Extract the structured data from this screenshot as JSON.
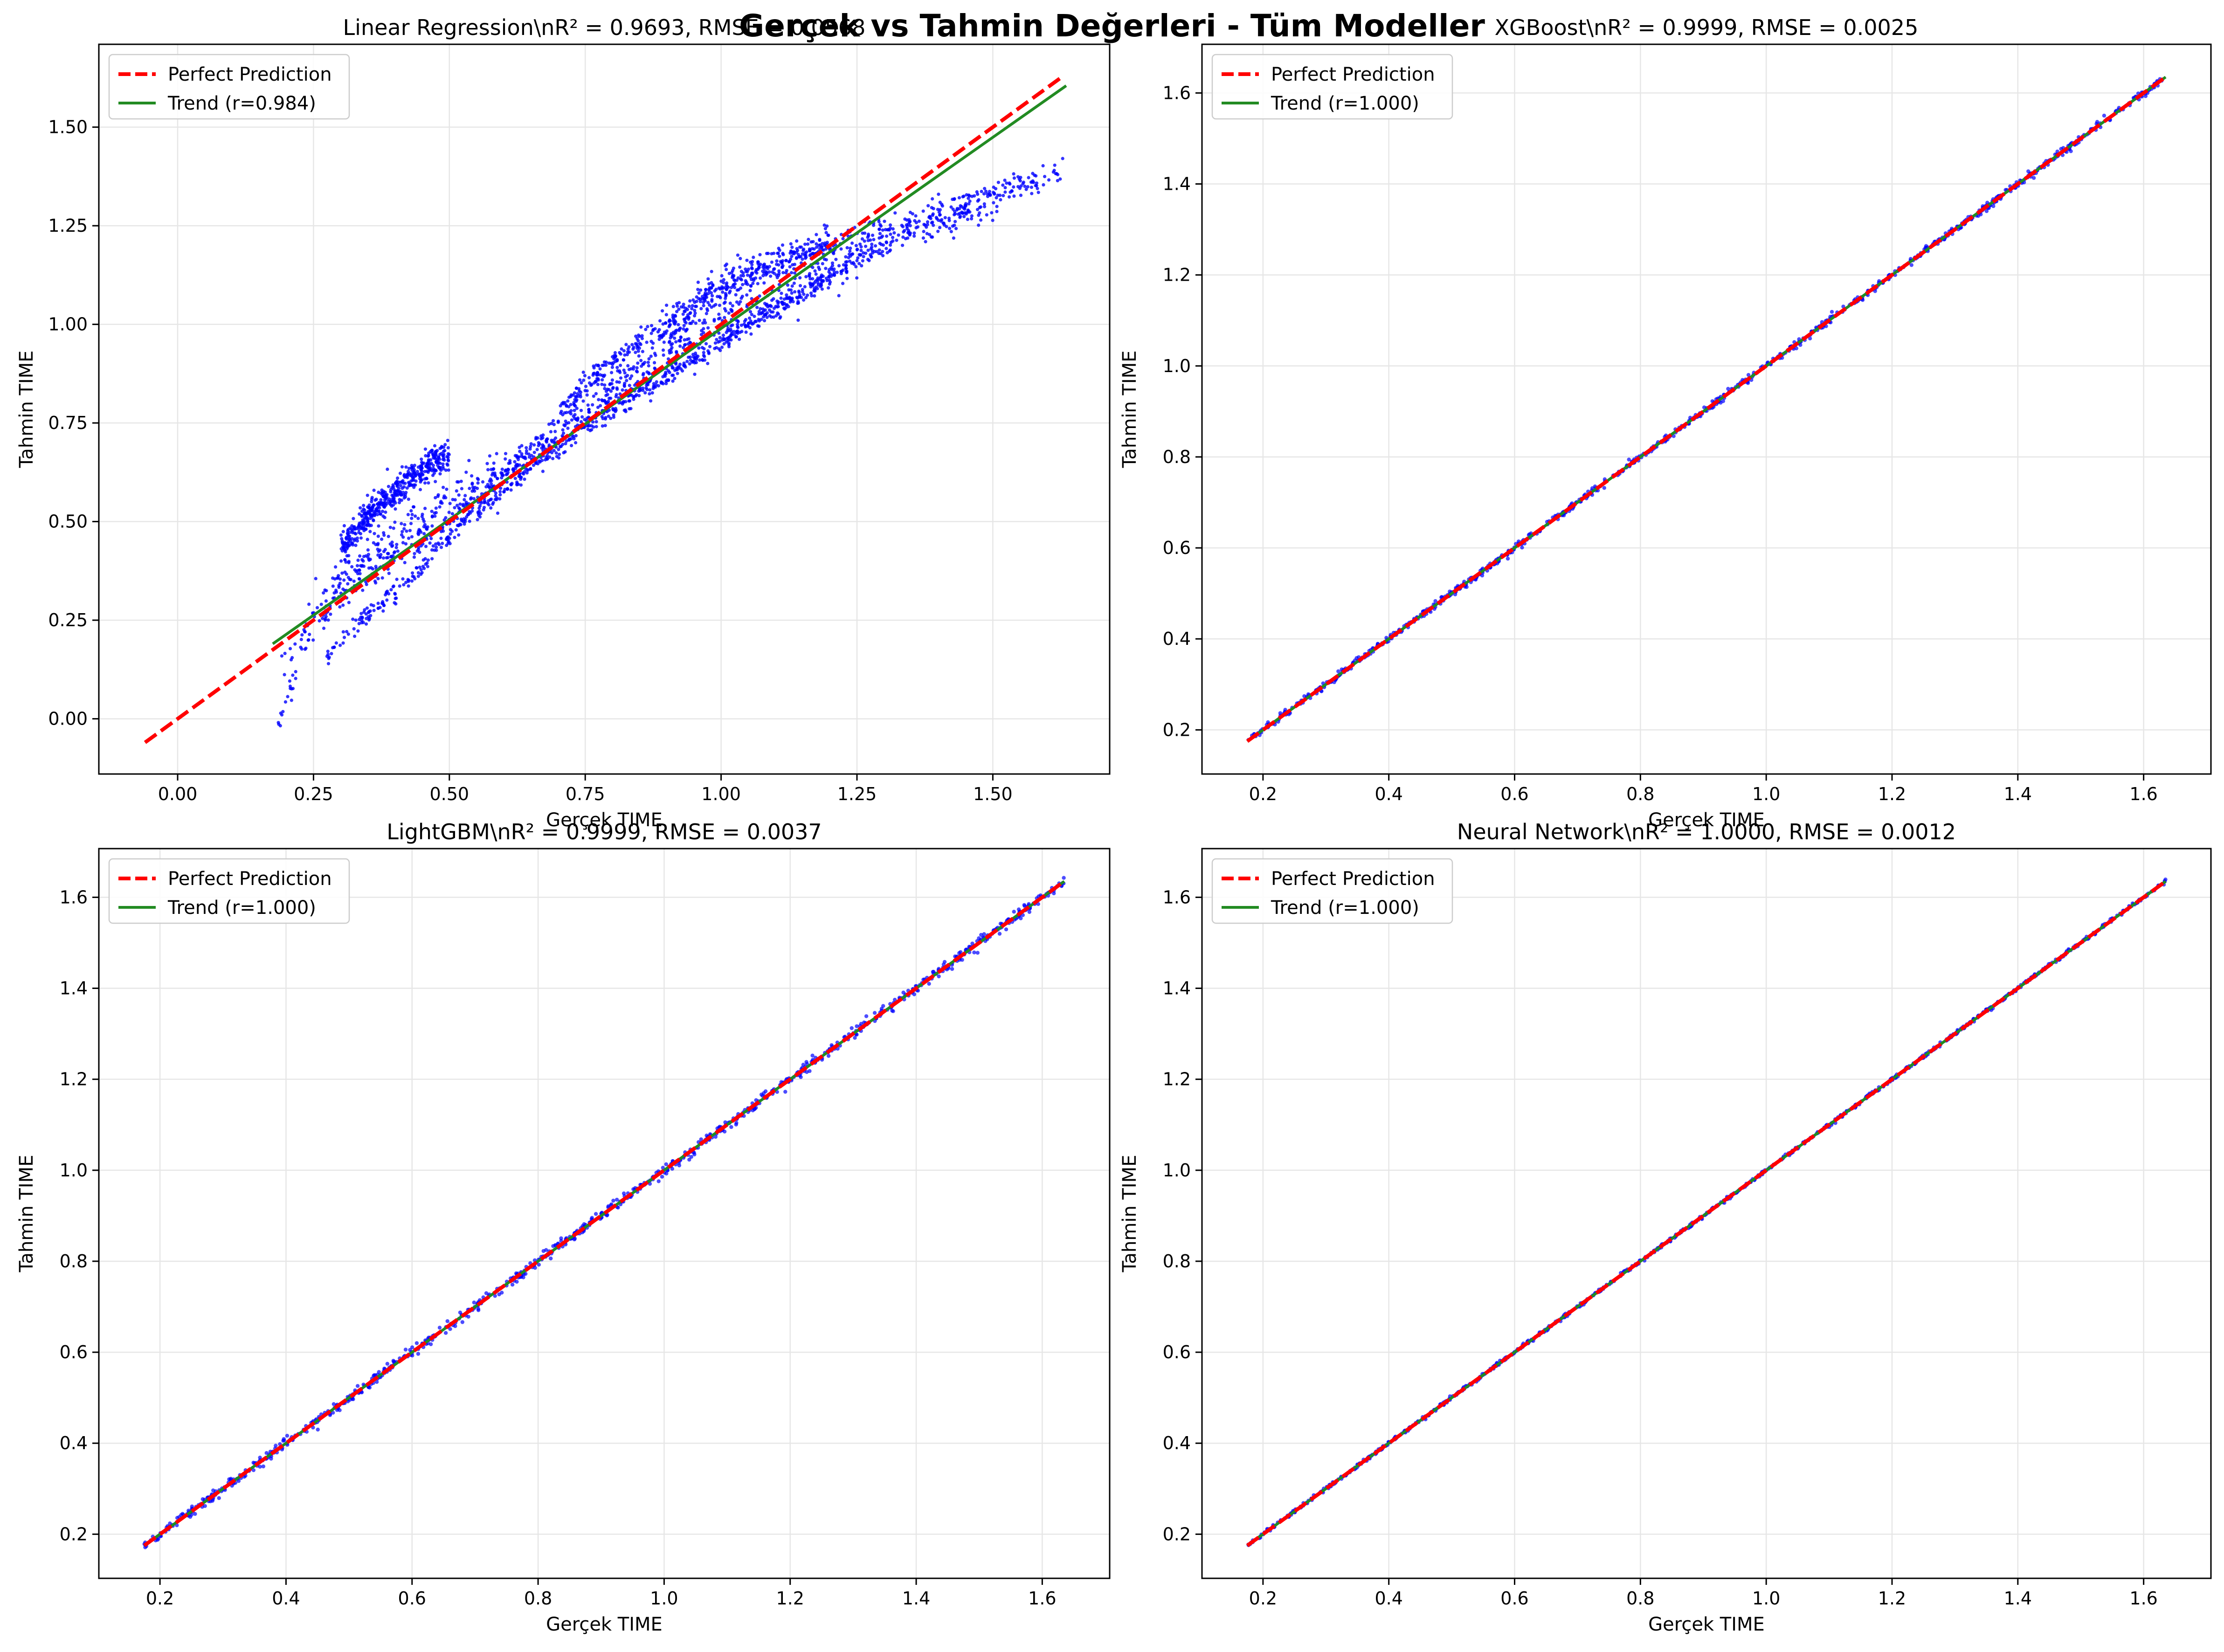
{
  "figure": {
    "title": "Gerçek vs Tahmin Değerleri - Tüm Modeller",
    "colors": {
      "points": "#0000ff",
      "perfect_line": "#ff0000",
      "trend_line": "#228b22",
      "grid": "#e6e6e6"
    }
  },
  "chart_data": [
    {
      "type": "scatter",
      "title": "Linear Regression\\nR² = 0.9693, RMSE = 0.0568",
      "xlabel": "Gerçek TIME",
      "ylabel": "Tahmin TIME",
      "xlim": [
        -0.145,
        1.715
      ],
      "ylim": [
        -0.14,
        1.71
      ],
      "xticks": [
        0.0,
        0.25,
        0.5,
        0.75,
        1.0,
        1.25,
        1.5
      ],
      "xtick_labels": [
        "0.00",
        "0.25",
        "0.50",
        "0.75",
        "1.00",
        "1.25",
        "1.50"
      ],
      "yticks": [
        0.0,
        0.25,
        0.5,
        0.75,
        1.0,
        1.25,
        1.5
      ],
      "ytick_labels": [
        "0.00",
        "0.25",
        "0.50",
        "0.75",
        "1.00",
        "1.25",
        "1.50"
      ],
      "grid": true,
      "legend_position": "top-left",
      "legend": [
        "Perfect Prediction",
        "Trend (r=0.984)"
      ],
      "perfect_line": [
        [
          -0.06,
          -0.06
        ],
        [
          1.63,
          1.63
        ]
      ],
      "trend_line": [
        [
          0.175,
          0.19
        ],
        [
          1.635,
          1.605
        ]
      ],
      "point_clusters": [
        {
          "x": [
            0.18,
            0.2,
            0.23,
            0.26,
            0.3,
            0.36,
            0.42,
            0.5,
            0.6,
            0.7,
            0.8,
            0.9,
            1.0,
            1.1,
            1.2,
            1.3,
            1.4,
            1.5,
            1.55,
            1.6,
            1.63
          ],
          "y": [
            -0.05,
            0.05,
            0.17,
            0.24,
            0.3,
            0.36,
            0.42,
            0.5,
            0.61,
            0.7,
            0.79,
            0.87,
            0.95,
            1.04,
            1.12,
            1.2,
            1.28,
            1.33,
            1.35,
            1.37,
            1.39
          ],
          "spread": 0.015
        },
        {
          "x": [
            0.27,
            0.32,
            0.38,
            0.45,
            0.52,
            0.6,
            0.7,
            0.8,
            0.9,
            1.0,
            1.1,
            1.2
          ],
          "y": [
            0.15,
            0.22,
            0.3,
            0.39,
            0.49,
            0.58,
            0.69,
            0.79,
            0.87,
            0.96,
            1.04,
            1.12
          ],
          "spread": 0.012
        },
        {
          "x": [
            0.19,
            0.22,
            0.25,
            0.28,
            0.32,
            0.36,
            0.4,
            0.45,
            0.5,
            0.6,
            0.7,
            0.8,
            0.9,
            1.0,
            1.1,
            1.2,
            1.3,
            1.4,
            1.5
          ],
          "y": [
            0.12,
            0.2,
            0.28,
            0.33,
            0.37,
            0.4,
            0.43,
            0.47,
            0.52,
            0.62,
            0.73,
            0.83,
            0.92,
            1.0,
            1.07,
            1.13,
            1.2,
            1.26,
            1.3
          ],
          "spread": 0.02
        },
        {
          "x": [
            0.28,
            0.33,
            0.38,
            0.42,
            0.47,
            0.52,
            0.58,
            0.65,
            0.72,
            0.8,
            0.9,
            1.0,
            1.1,
            1.2,
            1.3,
            1.4,
            1.5,
            1.58
          ],
          "y": [
            0.28,
            0.38,
            0.45,
            0.5,
            0.55,
            0.58,
            0.62,
            0.68,
            0.75,
            0.84,
            0.95,
            1.05,
            1.14,
            1.2,
            1.24,
            1.29,
            1.33,
            1.36
          ],
          "spread": 0.02
        },
        {
          "x": [
            0.3,
            0.34,
            0.38,
            0.42,
            0.46,
            0.5
          ],
          "y": [
            0.43,
            0.5,
            0.55,
            0.6,
            0.64,
            0.67
          ],
          "spread": 0.02
        },
        {
          "x": [
            0.7,
            0.75,
            0.8,
            0.85,
            0.9,
            0.95,
            1.0,
            1.05,
            1.1,
            1.15,
            1.2
          ],
          "y": [
            0.78,
            0.84,
            0.9,
            0.95,
            1.0,
            1.04,
            1.1,
            1.13,
            1.16,
            1.18,
            1.2
          ],
          "spread": 0.02
        }
      ]
    },
    {
      "type": "scatter",
      "title": "XGBoost\\nR² = 0.9999, RMSE = 0.0025",
      "xlabel": "Gerçek TIME",
      "ylabel": "Tahmin TIME",
      "xlim": [
        0.103,
        1.707
      ],
      "ylim": [
        0.103,
        1.707
      ],
      "xticks": [
        0.2,
        0.4,
        0.6,
        0.8,
        1.0,
        1.2,
        1.4,
        1.6
      ],
      "xtick_labels": [
        "0.2",
        "0.4",
        "0.6",
        "0.8",
        "1.0",
        "1.2",
        "1.4",
        "1.6"
      ],
      "yticks": [
        0.2,
        0.4,
        0.6,
        0.8,
        1.0,
        1.2,
        1.4,
        1.6
      ],
      "ytick_labels": [
        "0.2",
        "0.4",
        "0.6",
        "0.8",
        "1.0",
        "1.2",
        "1.4",
        "1.6"
      ],
      "grid": true,
      "legend_position": "top-left",
      "legend": [
        "Perfect Prediction",
        "Trend (r=1.000)"
      ],
      "perfect_line": [
        [
          0.175,
          0.175
        ],
        [
          1.635,
          1.635
        ]
      ],
      "trend_line": [
        [
          0.175,
          0.175
        ],
        [
          1.635,
          1.635
        ]
      ],
      "point_clusters": [
        {
          "x": [
            0.175,
            1.635
          ],
          "y": [
            0.175,
            1.635
          ],
          "spread": 0.004
        }
      ]
    },
    {
      "type": "scatter",
      "title": "LightGBM\\nR² = 0.9999, RMSE = 0.0037",
      "xlabel": "Gerçek TIME",
      "ylabel": "Tahmin TIME",
      "xlim": [
        0.103,
        1.707
      ],
      "ylim": [
        0.103,
        1.707
      ],
      "xticks": [
        0.2,
        0.4,
        0.6,
        0.8,
        1.0,
        1.2,
        1.4,
        1.6
      ],
      "xtick_labels": [
        "0.2",
        "0.4",
        "0.6",
        "0.8",
        "1.0",
        "1.2",
        "1.4",
        "1.6"
      ],
      "yticks": [
        0.2,
        0.4,
        0.6,
        0.8,
        1.0,
        1.2,
        1.4,
        1.6
      ],
      "ytick_labels": [
        "0.2",
        "0.4",
        "0.6",
        "0.8",
        "1.0",
        "1.2",
        "1.4",
        "1.6"
      ],
      "grid": true,
      "legend_position": "top-left",
      "legend": [
        "Perfect Prediction",
        "Trend (r=1.000)"
      ],
      "perfect_line": [
        [
          0.175,
          0.175
        ],
        [
          1.635,
          1.635
        ]
      ],
      "trend_line": [
        [
          0.175,
          0.175
        ],
        [
          1.635,
          1.635
        ]
      ],
      "point_clusters": [
        {
          "x": [
            0.175,
            1.635
          ],
          "y": [
            0.175,
            1.635
          ],
          "spread": 0.006
        }
      ]
    },
    {
      "type": "scatter",
      "title": "Neural Network\\nR² = 1.0000, RMSE = 0.0012",
      "xlabel": "Gerçek TIME",
      "ylabel": "Tahmin TIME",
      "xlim": [
        0.103,
        1.707
      ],
      "ylim": [
        0.103,
        1.707
      ],
      "xticks": [
        0.2,
        0.4,
        0.6,
        0.8,
        1.0,
        1.2,
        1.4,
        1.6
      ],
      "xtick_labels": [
        "0.2",
        "0.4",
        "0.6",
        "0.8",
        "1.0",
        "1.2",
        "1.4",
        "1.6"
      ],
      "yticks": [
        0.2,
        0.4,
        0.6,
        0.8,
        1.0,
        1.2,
        1.4,
        1.6
      ],
      "ytick_labels": [
        "0.2",
        "0.4",
        "0.6",
        "0.8",
        "1.0",
        "1.2",
        "1.4",
        "1.6"
      ],
      "grid": true,
      "legend_position": "top-left",
      "legend": [
        "Perfect Prediction",
        "Trend (r=1.000)"
      ],
      "perfect_line": [
        [
          0.175,
          0.175
        ],
        [
          1.635,
          1.635
        ]
      ],
      "trend_line": [
        [
          0.175,
          0.175
        ],
        [
          1.635,
          1.635
        ]
      ],
      "point_clusters": [
        {
          "x": [
            0.175,
            1.635
          ],
          "y": [
            0.175,
            1.635
          ],
          "spread": 0.002
        }
      ]
    }
  ]
}
